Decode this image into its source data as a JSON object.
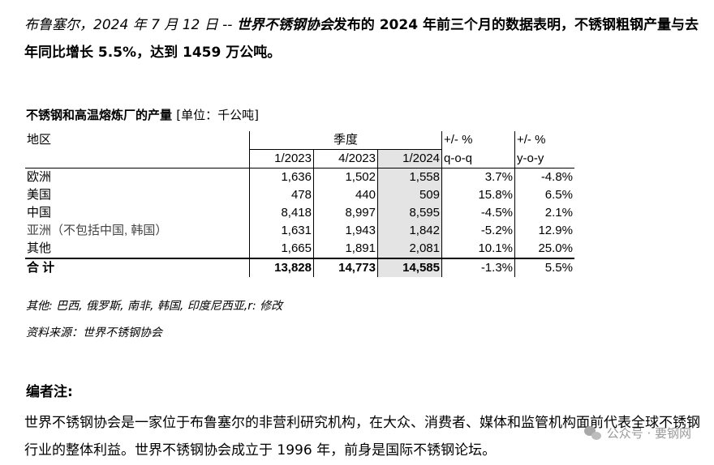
{
  "intro": {
    "place_date": "布鲁塞尔，2024 年 7 月 12 日 --",
    "org": "世界不锈钢协会",
    "text": "发布的 2024 年前三个月的数据表明，不锈钢粗钢产量与去年同比增长 5.5%，达到 1459 万公吨。"
  },
  "table_title": {
    "main": "不锈钢和高温熔炼厂的产量",
    "unit": "[单位：千公吨]"
  },
  "table": {
    "header": {
      "region": "地区",
      "quarter": "季度",
      "qoq": "+/- %",
      "yoy": "+/- %"
    },
    "subheader": {
      "q1_2023": "1/2023",
      "q4_2023": "4/2023",
      "q1_2024": "1/2024",
      "qoq": "q-o-q",
      "yoy": "y-o-y"
    },
    "rows": [
      {
        "region": "欧洲",
        "q1_2023": "1,636",
        "q4_2023": "1,502",
        "q1_2024": "1,558",
        "qoq": "3.7%",
        "yoy": "-4.8%"
      },
      {
        "region": "美国",
        "q1_2023": "478",
        "q4_2023": "440",
        "q1_2024": "509",
        "qoq": "15.8%",
        "yoy": "6.5%"
      },
      {
        "region": "中国",
        "q1_2023": "8,418",
        "q4_2023": "8,997",
        "q1_2024": "8,595",
        "qoq": "-4.5%",
        "yoy": "2.1%"
      },
      {
        "region": "亚洲（不包括中国, 韩国）",
        "q1_2023": "1,631",
        "q4_2023": "1,943",
        "q1_2024": "1,842",
        "qoq": "-5.2%",
        "yoy": "12.9%"
      },
      {
        "region": "其他",
        "q1_2023": "1,665",
        "q4_2023": "1,891",
        "q1_2024": "2,081",
        "qoq": "10.1%",
        "yoy": "25.0%"
      }
    ],
    "total": {
      "region": "合 计",
      "q1_2023": "13,828",
      "q4_2023": "14,773",
      "q1_2024": "14,585",
      "qoq": "-1.3%",
      "yoy": "5.5%"
    }
  },
  "notes": {
    "others": "其他: 巴西, 俄罗斯, 南非, 韩国, 印度尼西亚,r: 修改",
    "source": "资料来源：世界不锈钢协会"
  },
  "editor": {
    "heading": "编者注:",
    "body": "世界不锈钢协会是一家位于布鲁塞尔的非营利研究机构，在大众、消费者、媒体和监管机构面前代表全球不锈钢行业的整体利益。世界不锈钢协会成立于 1996 年，前身是国际不锈钢论坛。"
  },
  "watermark": {
    "icon": "wechat-icon",
    "text": "公众号 · 要钢网"
  }
}
